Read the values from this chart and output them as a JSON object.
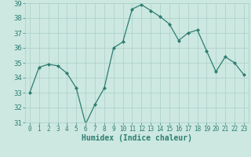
{
  "x": [
    0,
    1,
    2,
    3,
    4,
    5,
    6,
    7,
    8,
    9,
    10,
    11,
    12,
    13,
    14,
    15,
    16,
    17,
    18,
    19,
    20,
    21,
    22,
    23
  ],
  "y": [
    33.0,
    34.7,
    34.9,
    34.8,
    34.3,
    33.3,
    30.9,
    32.2,
    33.3,
    36.0,
    36.4,
    38.6,
    38.9,
    38.5,
    38.1,
    37.6,
    36.5,
    37.0,
    37.2,
    35.8,
    34.4,
    35.4,
    35.0,
    34.2
  ],
  "xlabel": "Humidex (Indice chaleur)",
  "ylim": [
    31,
    39
  ],
  "yticks": [
    31,
    32,
    33,
    34,
    35,
    36,
    37,
    38,
    39
  ],
  "xticks": [
    0,
    1,
    2,
    3,
    4,
    5,
    6,
    7,
    8,
    9,
    10,
    11,
    12,
    13,
    14,
    15,
    16,
    17,
    18,
    19,
    20,
    21,
    22,
    23
  ],
  "line_color": "#2e7d72",
  "marker": "D",
  "marker_size": 2.0,
  "bg_color": "#cce8e0",
  "grid_color": "#aacfc8",
  "font_color": "#2e7d72",
  "xlabel_fontsize": 7,
  "tick_fontsize": 6.5,
  "linewidth": 0.9
}
